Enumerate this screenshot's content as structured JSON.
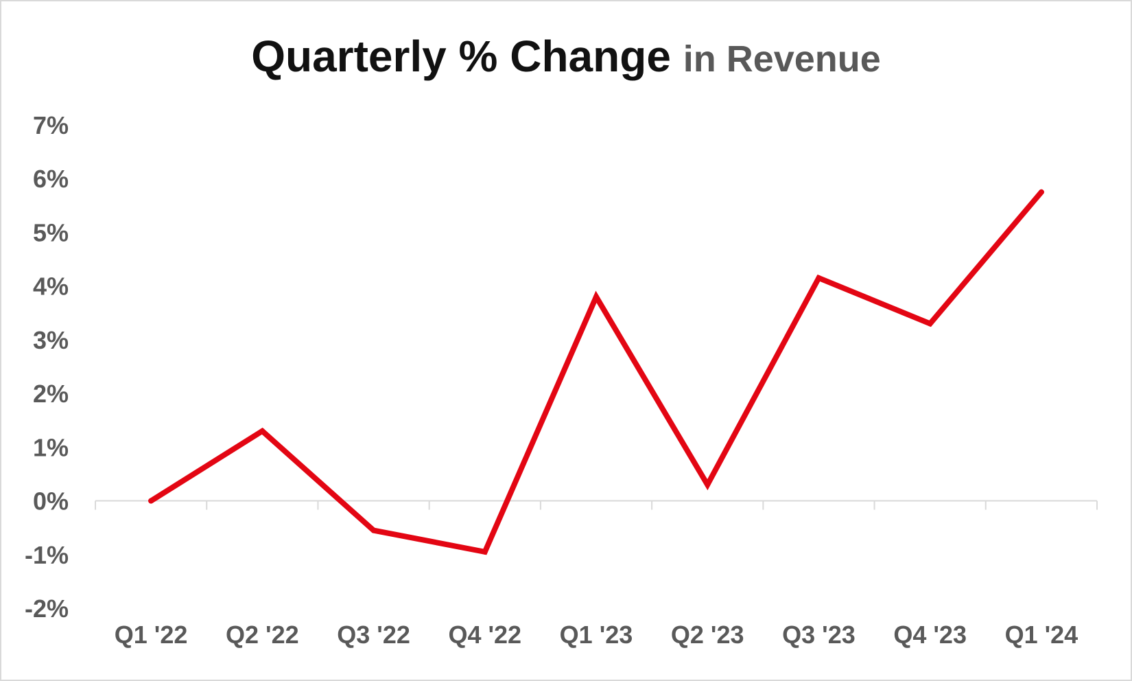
{
  "title": {
    "main": "Quarterly % Change",
    "sub": "in Revenue"
  },
  "chart_data": {
    "type": "line",
    "categories": [
      "Q1 '22",
      "Q2 '22",
      "Q3 '22",
      "Q4 '22",
      "Q1 '23",
      "Q2 '23",
      "Q3 '23",
      "Q4 '23",
      "Q1 '24"
    ],
    "series": [
      {
        "values": [
          0.0,
          1.3,
          -0.55,
          -0.95,
          3.8,
          0.3,
          4.15,
          3.3,
          5.75
        ],
        "color": "#e30613"
      }
    ],
    "yticks": [
      "-2%",
      "-1%",
      "0%",
      "1%",
      "2%",
      "3%",
      "4%",
      "5%",
      "6%",
      "7%"
    ],
    "ylim": [
      -2,
      7
    ],
    "grid": false,
    "legend": "none",
    "colors": {
      "axis": "#d9d9d9",
      "tick_text": "#595959",
      "title_text": "#111111",
      "subtitle_text": "#595959"
    }
  }
}
